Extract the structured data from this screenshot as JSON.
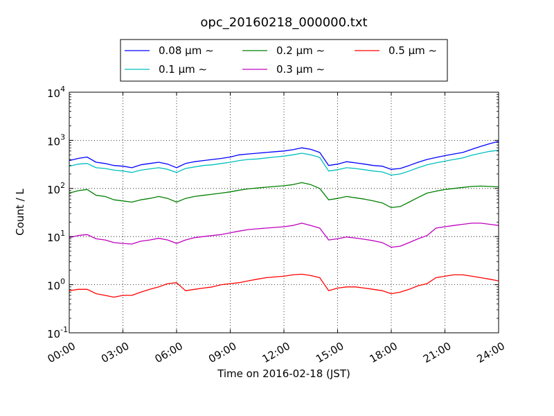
{
  "chart_data": {
    "type": "line",
    "title": "opc_20160218_000000.txt",
    "xlabel": "Time on 2016-02-18 (JST)",
    "ylabel": "Count / L",
    "yscale": "log",
    "xlim": [
      "00:00",
      "24:00"
    ],
    "ylim": [
      0.1,
      10000
    ],
    "grid": true,
    "legend_position": "top-center",
    "x_ticks": [
      "00:00",
      "03:00",
      "06:00",
      "09:00",
      "12:00",
      "15:00",
      "18:00",
      "21:00",
      "24:00"
    ],
    "y_ticks": [
      {
        "base": "10",
        "exp": "-1",
        "value": 0.1
      },
      {
        "base": "10",
        "exp": "0",
        "value": 1
      },
      {
        "base": "10",
        "exp": "1",
        "value": 10
      },
      {
        "base": "10",
        "exp": "2",
        "value": 100
      },
      {
        "base": "10",
        "exp": "3",
        "value": 1000
      },
      {
        "base": "10",
        "exp": "4",
        "value": 10000
      }
    ],
    "x_hours": [
      0,
      0.5,
      1,
      1.5,
      2,
      2.5,
      3,
      3.5,
      4,
      4.5,
      5,
      5.5,
      6,
      6.5,
      7,
      7.5,
      8,
      8.5,
      9,
      9.5,
      10,
      10.5,
      11,
      11.5,
      12,
      12.5,
      13,
      13.5,
      14,
      14.5,
      15,
      15.5,
      16,
      16.5,
      17,
      17.5,
      18,
      18.5,
      19,
      19.5,
      20,
      20.5,
      21,
      21.5,
      22,
      22.5,
      23,
      23.5,
      24
    ],
    "series": [
      {
        "name": "0.08 μm ∼",
        "color": "#0000ff",
        "values": [
          380,
          420,
          450,
          350,
          330,
          300,
          290,
          270,
          310,
          330,
          350,
          320,
          270,
          330,
          360,
          380,
          400,
          420,
          450,
          500,
          520,
          540,
          560,
          580,
          600,
          640,
          700,
          650,
          560,
          300,
          320,
          360,
          340,
          320,
          300,
          290,
          250,
          260,
          300,
          350,
          400,
          440,
          480,
          520,
          560,
          650,
          750,
          850,
          950
        ]
      },
      {
        "name": "0.1 μm ∼",
        "color": "#00bfbf",
        "values": [
          290,
          320,
          330,
          270,
          260,
          240,
          230,
          215,
          240,
          255,
          270,
          250,
          215,
          260,
          280,
          300,
          310,
          330,
          350,
          380,
          400,
          410,
          430,
          450,
          470,
          500,
          540,
          500,
          440,
          230,
          245,
          270,
          260,
          245,
          230,
          220,
          190,
          200,
          230,
          270,
          310,
          340,
          370,
          400,
          430,
          490,
          540,
          590,
          620
        ]
      },
      {
        "name": "0.2 μm ∼",
        "color": "#008000",
        "values": [
          80,
          90,
          95,
          72,
          68,
          58,
          55,
          52,
          58,
          62,
          68,
          62,
          52,
          62,
          68,
          72,
          76,
          80,
          85,
          92,
          98,
          102,
          106,
          110,
          114,
          120,
          132,
          120,
          100,
          58,
          62,
          68,
          64,
          60,
          55,
          50,
          40,
          42,
          52,
          65,
          80,
          88,
          95,
          100,
          105,
          110,
          112,
          110,
          108
        ]
      },
      {
        "name": "0.3 μm ∼",
        "color": "#bf00bf",
        "values": [
          9.5,
          10.5,
          11,
          9,
          8.5,
          7.5,
          7.2,
          7,
          8,
          8.5,
          9.2,
          8.5,
          7.2,
          8.5,
          9.5,
          10,
          10.5,
          11,
          12,
          13,
          14,
          14.5,
          15,
          15.5,
          16,
          17,
          19,
          17,
          15,
          8.5,
          9,
          9.8,
          9.3,
          8.8,
          8.2,
          7.5,
          6,
          6.3,
          7.5,
          9,
          10.5,
          15,
          16,
          17,
          18,
          19,
          19,
          18,
          17
        ]
      },
      {
        "name": "0.5 μm ∼",
        "color": "#ff0000",
        "values": [
          0.75,
          0.8,
          0.8,
          0.65,
          0.6,
          0.55,
          0.6,
          0.6,
          0.7,
          0.8,
          0.9,
          1.05,
          1.1,
          0.75,
          0.8,
          0.85,
          0.9,
          1.0,
          1.05,
          1.1,
          1.2,
          1.3,
          1.4,
          1.45,
          1.5,
          1.6,
          1.65,
          1.55,
          1.4,
          0.75,
          0.85,
          0.9,
          0.9,
          0.85,
          0.8,
          0.75,
          0.65,
          0.7,
          0.8,
          0.95,
          1.05,
          1.4,
          1.5,
          1.6,
          1.6,
          1.5,
          1.4,
          1.3,
          1.2
        ]
      }
    ]
  }
}
